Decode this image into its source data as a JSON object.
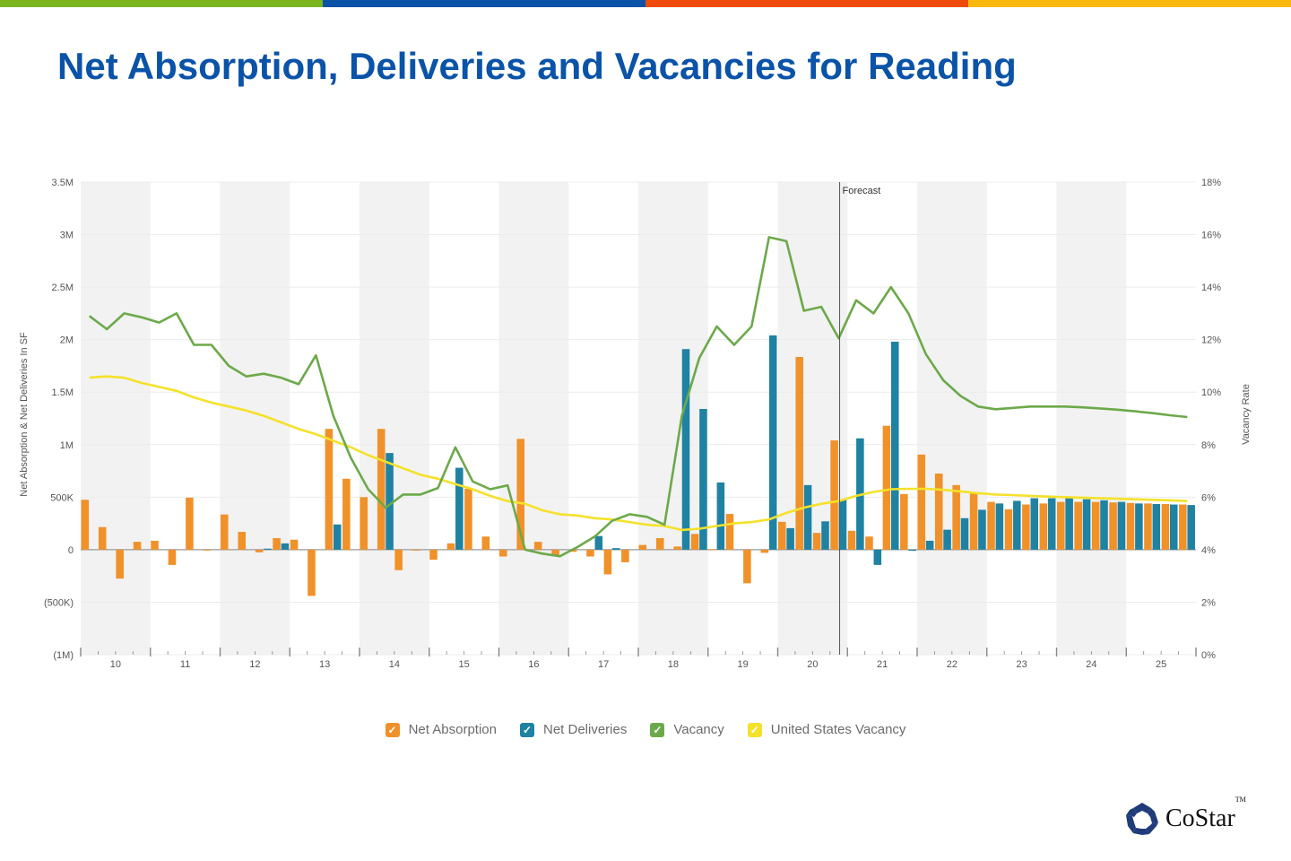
{
  "header": {
    "title": "Net Absorption, Deliveries and Vacancies for Reading",
    "bar_colors": [
      "#7ab51d",
      "#0a53a8",
      "#ee4b0a",
      "#fbb80f"
    ]
  },
  "logo": {
    "text": "CoStar",
    "tm": "TM",
    "color": "#1f3b7a"
  },
  "legend": [
    {
      "label": "Net Absorption",
      "color": "#f0912a",
      "checked": true
    },
    {
      "label": "Net Deliveries",
      "color": "#1f82a3",
      "checked": true
    },
    {
      "label": "Vacancy",
      "color": "#6ca94a",
      "checked": true
    },
    {
      "label": "United States Vacancy",
      "color": "#f5e12a",
      "checked": true
    }
  ],
  "chart_data": {
    "type": "bar+line",
    "title": "Net Absorption, Deliveries and Vacancies for Reading",
    "xlabel": "",
    "ylabel": "Net Absorption & Net Deliveries In SF",
    "y2label": "Vacancy Rate",
    "ylim": [
      -1000000,
      3500000
    ],
    "y2lim": [
      0,
      18
    ],
    "y_ticks": [
      "3.5M",
      "3M",
      "2.5M",
      "2M",
      "1.5M",
      "1M",
      "500K",
      "0",
      "(500K)",
      "(1M)"
    ],
    "y2_ticks": [
      "18%",
      "16%",
      "14%",
      "12%",
      "10%",
      "8%",
      "6%",
      "4%",
      "2%",
      "0%"
    ],
    "categories": [
      "10",
      "11",
      "12",
      "13",
      "14",
      "15",
      "16",
      "17",
      "18",
      "19",
      "20",
      "21",
      "22",
      "23",
      "24",
      "25"
    ],
    "quarters_per_year": 4,
    "forecast_annotation": {
      "label": "Forecast",
      "starts_after_quarter_index": 43
    },
    "grid": true,
    "legend_position": "bottom",
    "series": [
      {
        "name": "Net Absorption",
        "type": "bar",
        "axis": "left",
        "unit": "SF",
        "values": [
          475000,
          215000,
          -275000,
          75000,
          85000,
          -145000,
          495000,
          -5000,
          335000,
          170000,
          -25000,
          110000,
          95000,
          -440000,
          1150000,
          675000,
          500000,
          1150000,
          -195000,
          -5000,
          -95000,
          60000,
          580000,
          125000,
          -65000,
          1055000,
          75000,
          -60000,
          -20000,
          -65000,
          -235000,
          -120000,
          45000,
          110000,
          30000,
          150000,
          5000,
          340000,
          -320000,
          -30000,
          265000,
          1835000,
          160000,
          1040000,
          180000,
          125000,
          1180000,
          530000,
          905000,
          725000,
          615000,
          550000,
          455000,
          385000,
          430000,
          440000,
          455000,
          455000,
          455000,
          450000,
          445000,
          440000,
          435000,
          430000
        ]
      },
      {
        "name": "Net Deliveries",
        "type": "bar",
        "axis": "left",
        "unit": "SF",
        "values": [
          0,
          0,
          0,
          0,
          0,
          0,
          0,
          0,
          0,
          0,
          10000,
          60000,
          0,
          0,
          240000,
          0,
          0,
          920000,
          0,
          0,
          0,
          780000,
          0,
          0,
          0,
          0,
          0,
          0,
          0,
          130000,
          15000,
          0,
          0,
          0,
          1910000,
          1340000,
          640000,
          0,
          0,
          2040000,
          205000,
          615000,
          270000,
          475000,
          1060000,
          -145000,
          1980000,
          -10000,
          85000,
          190000,
          300000,
          380000,
          440000,
          465000,
          490000,
          490000,
          490000,
          480000,
          470000,
          455000,
          440000,
          435000,
          430000,
          425000
        ]
      },
      {
        "name": "Vacancy",
        "type": "line",
        "axis": "right",
        "unit": "%",
        "values": [
          12.9,
          12.4,
          13.0,
          12.85,
          12.65,
          13.0,
          11.8,
          11.8,
          11.0,
          10.6,
          10.7,
          10.55,
          10.3,
          11.4,
          9.1,
          7.5,
          6.3,
          5.6,
          6.1,
          6.1,
          6.35,
          7.9,
          6.6,
          6.3,
          6.45,
          4.0,
          3.85,
          3.75,
          4.1,
          4.5,
          5.1,
          5.35,
          5.25,
          4.95,
          9.1,
          11.3,
          12.5,
          11.8,
          12.5,
          15.9,
          15.75,
          13.1,
          13.25,
          12.05,
          13.5,
          13.0,
          14.0,
          13.0,
          11.45,
          10.45,
          9.85,
          9.45,
          9.35,
          9.4,
          9.45,
          9.45,
          9.45,
          9.42,
          9.38,
          9.33,
          9.27,
          9.2,
          9.12,
          9.05
        ]
      },
      {
        "name": "United States Vacancy",
        "type": "line",
        "axis": "right",
        "unit": "%",
        "values": [
          10.55,
          10.6,
          10.55,
          10.35,
          10.2,
          10.05,
          9.8,
          9.6,
          9.45,
          9.3,
          9.1,
          8.85,
          8.6,
          8.4,
          8.15,
          7.9,
          7.6,
          7.35,
          7.1,
          6.85,
          6.7,
          6.5,
          6.3,
          6.05,
          5.85,
          5.75,
          5.5,
          5.35,
          5.3,
          5.2,
          5.15,
          5.05,
          4.95,
          4.9,
          4.75,
          4.8,
          4.9,
          5.0,
          5.05,
          5.15,
          5.4,
          5.6,
          5.75,
          5.85,
          6.05,
          6.2,
          6.3,
          6.32,
          6.32,
          6.28,
          6.22,
          6.15,
          6.1,
          6.08,
          6.05,
          6.02,
          6.0,
          5.98,
          5.96,
          5.94,
          5.92,
          5.9,
          5.88,
          5.85
        ]
      }
    ]
  }
}
